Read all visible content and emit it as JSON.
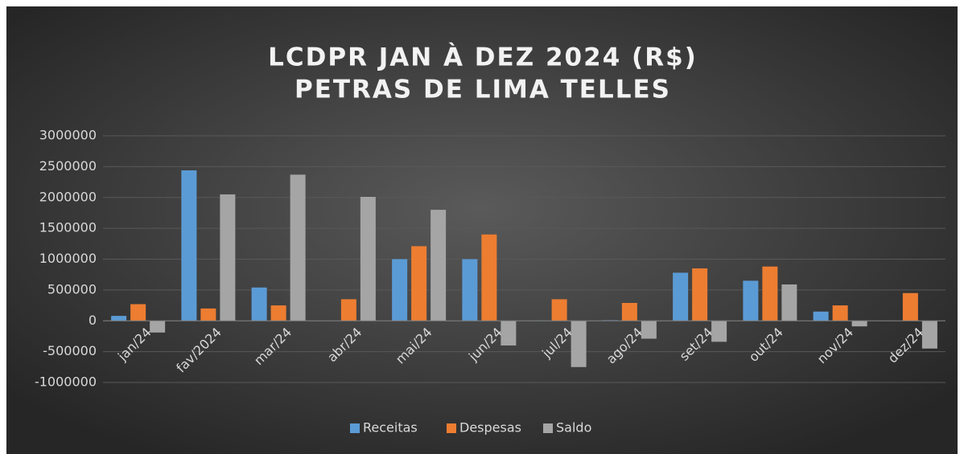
{
  "chart_data": {
    "type": "bar",
    "title": "LCDPR JAN À DEZ 2024 (R$)",
    "subtitle": "PETRAS DE LIMA TELLES",
    "categories": [
      "jan/24",
      "fav/2024",
      "mar/24",
      "abr/24",
      "mai/24",
      "jun/24",
      "jul/24",
      "ago/24",
      "set/24",
      "out/24",
      "nov/24",
      "dez/24"
    ],
    "series": [
      {
        "name": "Receitas",
        "color": "#5b9bd5",
        "values": [
          80000,
          2440000,
          540000,
          0,
          1000000,
          1000000,
          5000,
          10000,
          780000,
          650000,
          150000,
          0
        ]
      },
      {
        "name": "Despesas",
        "color": "#ed7d31",
        "values": [
          270000,
          200000,
          250000,
          350000,
          1210000,
          1400000,
          350000,
          290000,
          850000,
          880000,
          250000,
          450000
        ]
      },
      {
        "name": "Saldo",
        "color": "#a5a5a5",
        "values": [
          -190000,
          2050000,
          2370000,
          2010000,
          1800000,
          -400000,
          -750000,
          -290000,
          -340000,
          590000,
          -90000,
          -450000
        ]
      }
    ],
    "ylim": [
      -1000000,
      3000000
    ],
    "yticks": [
      -1000000,
      -500000,
      0,
      500000,
      1000000,
      1500000,
      2000000,
      2500000,
      3000000
    ],
    "grid": true,
    "legend": "bottom"
  }
}
